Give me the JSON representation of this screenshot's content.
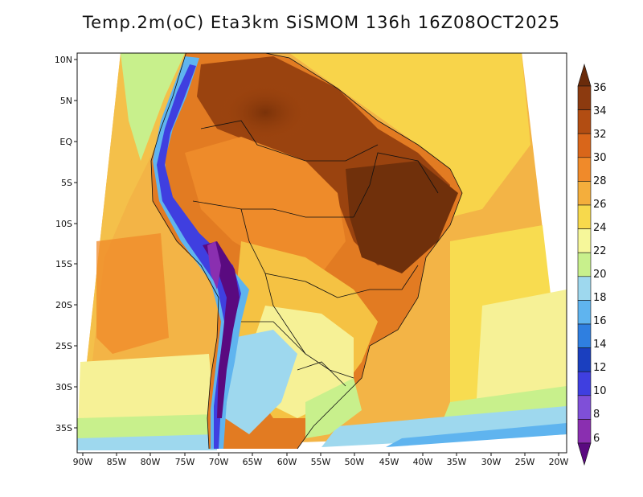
{
  "title": "Temp.2m(oC) Eta3km SiSMOM 136h 16Z08OCT2025",
  "map": {
    "variable": "2 m temperature",
    "units": "oC",
    "lat_labels": [
      "10N",
      "5N",
      "EQ",
      "5S",
      "10S",
      "15S",
      "20S",
      "25S",
      "30S",
      "35S"
    ],
    "lat_values": [
      10,
      5,
      0,
      -5,
      -10,
      -15,
      -20,
      -25,
      -30,
      -35
    ],
    "lon_labels": [
      "90W",
      "85W",
      "80W",
      "75W",
      "70W",
      "65W",
      "60W",
      "55W",
      "50W",
      "45W",
      "40W",
      "35W",
      "30W",
      "25W",
      "20W"
    ],
    "lon_values": [
      -90,
      -85,
      -80,
      -75,
      -70,
      -65,
      -60,
      -55,
      -50,
      -45,
      -40,
      -35,
      -30,
      -25,
      -20
    ]
  },
  "colorbar": {
    "labels": [
      "36",
      "34",
      "32",
      "30",
      "28",
      "26",
      "24",
      "22",
      "20",
      "18",
      "16",
      "14",
      "12",
      "10",
      "8",
      "6"
    ],
    "colors": [
      "#6a2b0a",
      "#8c3a0f",
      "#b24d12",
      "#d9661a",
      "#f08a2a",
      "#f4ae3c",
      "#f7d94c",
      "#f6f79a",
      "#c8f08c",
      "#9ed8ee",
      "#5fb4ef",
      "#2f7fe0",
      "#1a3fbf",
      "#3f3fe0",
      "#7f4fd8",
      "#8a2fb0",
      "#5a0a80"
    ]
  }
}
